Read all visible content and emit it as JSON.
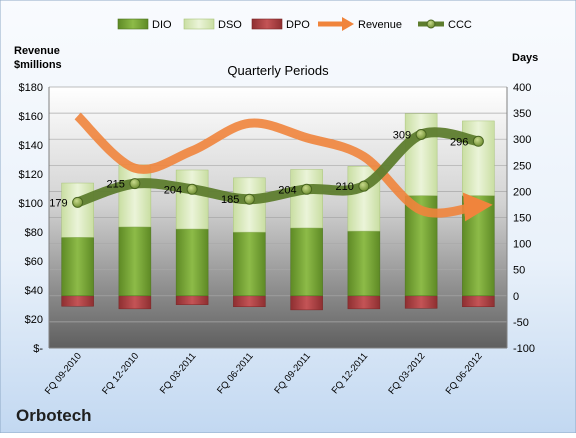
{
  "chart_data": {
    "type": "bar",
    "title": "Quarterly Periods",
    "company": "Orbotech",
    "left_axis": {
      "label_line1": "Revenue",
      "label_line2": "$millions",
      "ylim": [
        0,
        180
      ],
      "ticks": [
        0,
        20,
        40,
        60,
        80,
        100,
        120,
        140,
        160,
        180
      ],
      "tick_labels": [
        "$-",
        "$20",
        "$40",
        "$60",
        "$80",
        "$100",
        "$120",
        "$140",
        "$160",
        "$180"
      ]
    },
    "right_axis": {
      "label": "Days",
      "ylim": [
        -100,
        400
      ],
      "ticks": [
        -100,
        -50,
        0,
        50,
        100,
        150,
        200,
        250,
        300,
        350,
        400
      ],
      "tick_labels": [
        "-100",
        "-50",
        "0",
        "50",
        "100",
        "150",
        "200",
        "250",
        "300",
        "350",
        "400"
      ]
    },
    "categories": [
      "FQ 09-2010",
      "FQ 12-2010",
      "FQ 03-2011",
      "FQ 06-2011",
      "FQ 09-2011",
      "FQ 12-2011",
      "FQ 03-2012",
      "FQ 06-2012"
    ],
    "series": [
      {
        "name": "DIO",
        "kind": "bar",
        "axis": "right",
        "color": "#7BA33A",
        "values": [
          112,
          132,
          128,
          122,
          130,
          124,
          192,
          192
        ]
      },
      {
        "name": "DSO",
        "kind": "bar",
        "axis": "right",
        "color": "#DCEBC0",
        "values": [
          104,
          119,
          113,
          104,
          112,
          124,
          157,
          143
        ]
      },
      {
        "name": "DPO",
        "kind": "bar",
        "axis": "right",
        "color": "#B84345",
        "values": [
          -20,
          -25,
          -17,
          -21,
          -27,
          -25,
          -24,
          -21
        ]
      },
      {
        "name": "Revenue",
        "kind": "line",
        "axis": "left",
        "color": "#F0843C",
        "values": [
          160,
          124,
          136,
          155,
          145,
          132,
          95,
          98
        ]
      },
      {
        "name": "CCC",
        "kind": "line",
        "axis": "right",
        "color": "#5E7D2E",
        "values": [
          179,
          215,
          204,
          185,
          204,
          210,
          309,
          296
        ],
        "labels": [
          "179",
          "215",
          "204",
          "185",
          "204",
          "210",
          "309",
          "296"
        ]
      }
    ],
    "legend": {
      "placement": "top"
    },
    "grid": true
  }
}
